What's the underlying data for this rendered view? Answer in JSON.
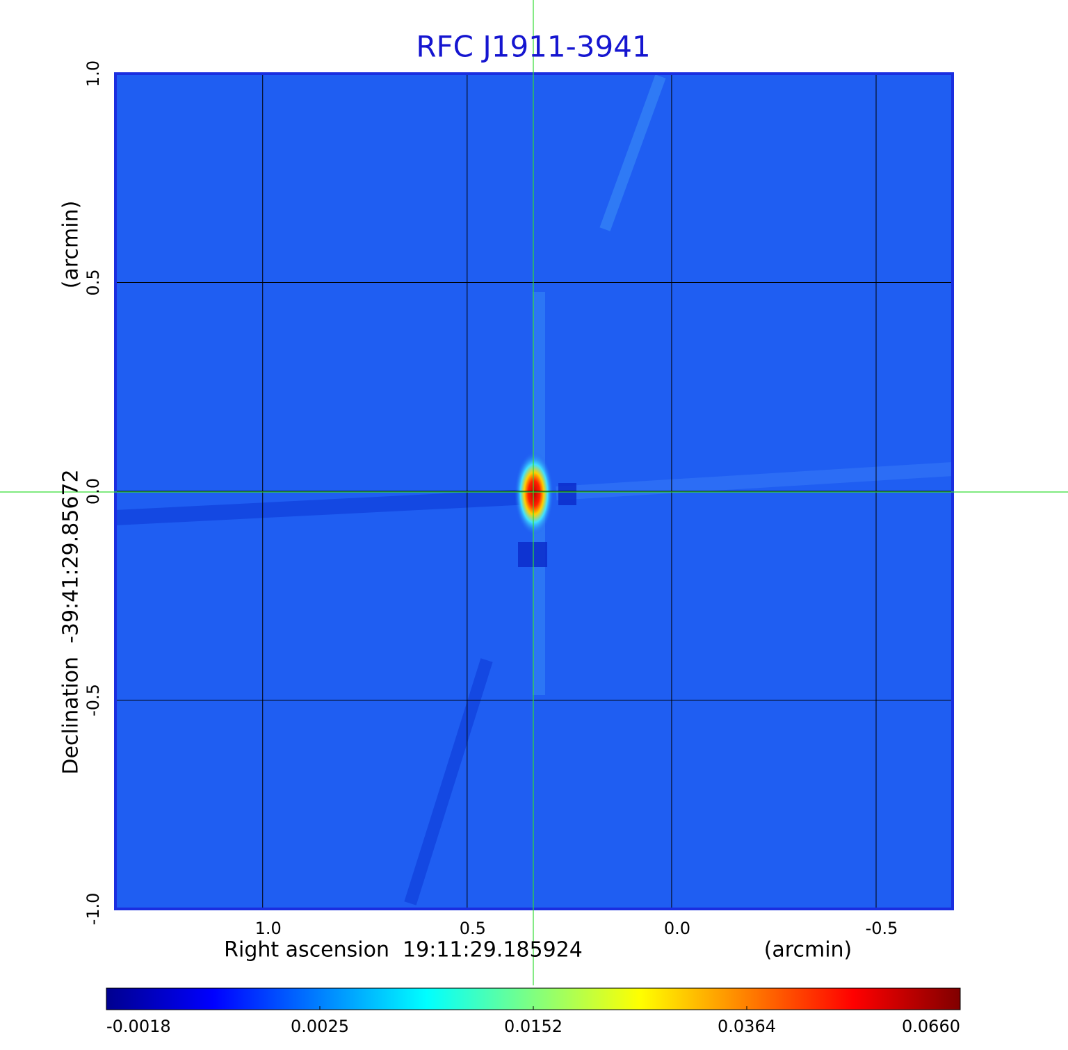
{
  "chart_data": {
    "type": "image",
    "title": "RFC J1911-3941",
    "x_label": "Right ascension  19:11:29.185924",
    "x_unit": "(arcmin)",
    "y_label": "Declination  -39:41:29.85672",
    "y_unit": "(arcmin)",
    "xlim": [
      1.36,
      -0.687
    ],
    "ylim": [
      -1.0,
      1.0
    ],
    "xticks": [
      {
        "value": 1.0,
        "label": "1.0"
      },
      {
        "value": 0.5,
        "label": "0.5"
      },
      {
        "value": 0.0,
        "label": "0.0"
      },
      {
        "value": -0.5,
        "label": "-0.5"
      }
    ],
    "yticks": [
      {
        "value": -1.0,
        "label": "-1.0"
      },
      {
        "value": -0.5,
        "label": "-0.5"
      },
      {
        "value": 0.0,
        "label": "0.0"
      },
      {
        "value": 0.5,
        "label": "0.5"
      },
      {
        "value": 1.0,
        "label": "1.0"
      }
    ],
    "grid": true,
    "colormap": "jet",
    "colorbar_ticks": [
      {
        "value": -0.0018,
        "label": "-0.0018"
      },
      {
        "value": 0.0025,
        "label": "0.0025"
      },
      {
        "value": 0.0152,
        "label": "0.0152"
      },
      {
        "value": 0.0364,
        "label": "0.0364"
      },
      {
        "value": 0.066,
        "label": "0.0660"
      }
    ]
  }
}
